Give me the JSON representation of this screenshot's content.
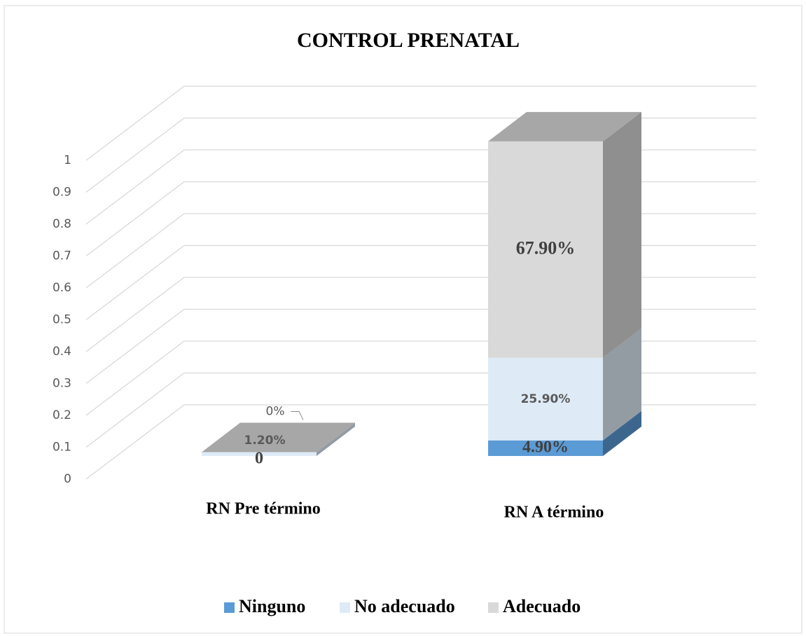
{
  "chart_data": {
    "type": "bar3d-stacked",
    "title": "CONTROL PRENATAL",
    "categories": [
      "RN Pre término",
      "RN A término"
    ],
    "series": [
      {
        "name": "Ninguno",
        "color": "#5b9bd5",
        "values": [
          0,
          0.049
        ],
        "value_labels": [
          "0",
          "4.90%"
        ]
      },
      {
        "name": "No adecuado",
        "color": "#deebf7",
        "values": [
          0.012,
          0.259
        ],
        "value_labels": [
          "1.20%",
          "25.90%"
        ]
      },
      {
        "name": "Adecuado",
        "color": "#d9d9d9",
        "values": [
          0,
          0.679
        ],
        "value_labels": [
          "0%",
          "67.90%"
        ]
      }
    ],
    "ylim": [
      0,
      1
    ],
    "yticks": [
      0,
      0.1,
      0.2,
      0.3,
      0.4,
      0.5,
      0.6,
      0.7,
      0.8,
      0.9,
      1
    ],
    "grid": true,
    "legend": "bottom"
  }
}
